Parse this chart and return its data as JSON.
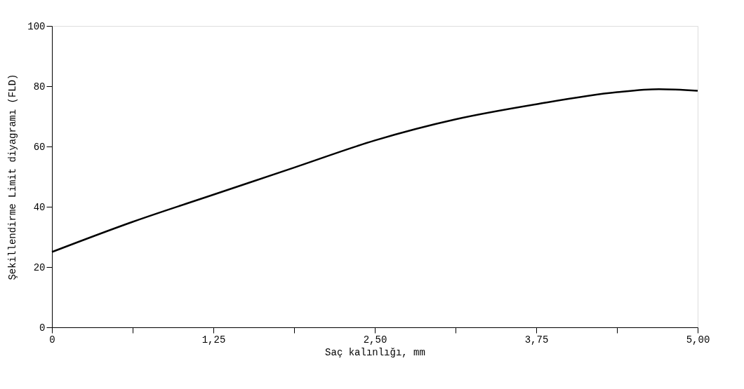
{
  "chart_data": {
    "type": "line",
    "xlabel": "Saç kalınlığı, mm",
    "ylabel": "Şekillendirme Limit diyagramı (FLD)",
    "x": [
      0,
      0.625,
      1.25,
      1.875,
      2.5,
      3.125,
      3.75,
      4.375,
      4.7,
      5.0
    ],
    "series": [
      {
        "color": "#000000",
        "values": [
          25,
          35,
          44,
          53,
          62,
          69,
          74,
          78,
          79,
          78.5
        ]
      }
    ],
    "xlim": [
      0,
      5.0
    ],
    "xticks": [
      0,
      {
        "value": 0.625,
        "label": null
      },
      {
        "value": 1.25,
        "label": "1,25"
      },
      {
        "value": 1.875,
        "label": null
      },
      {
        "value": 2.5,
        "label": "2,50"
      },
      {
        "value": 3.125,
        "label": null
      },
      {
        "value": 3.75,
        "label": "3,75"
      },
      {
        "value": 4.375,
        "label": null
      },
      {
        "value": 5.0,
        "label": "5,00"
      }
    ],
    "ylim": [
      0,
      100
    ],
    "yticks": [
      0,
      20,
      40,
      60,
      80,
      100
    ],
    "grid": false,
    "marker": "none",
    "line_style": "solid"
  }
}
